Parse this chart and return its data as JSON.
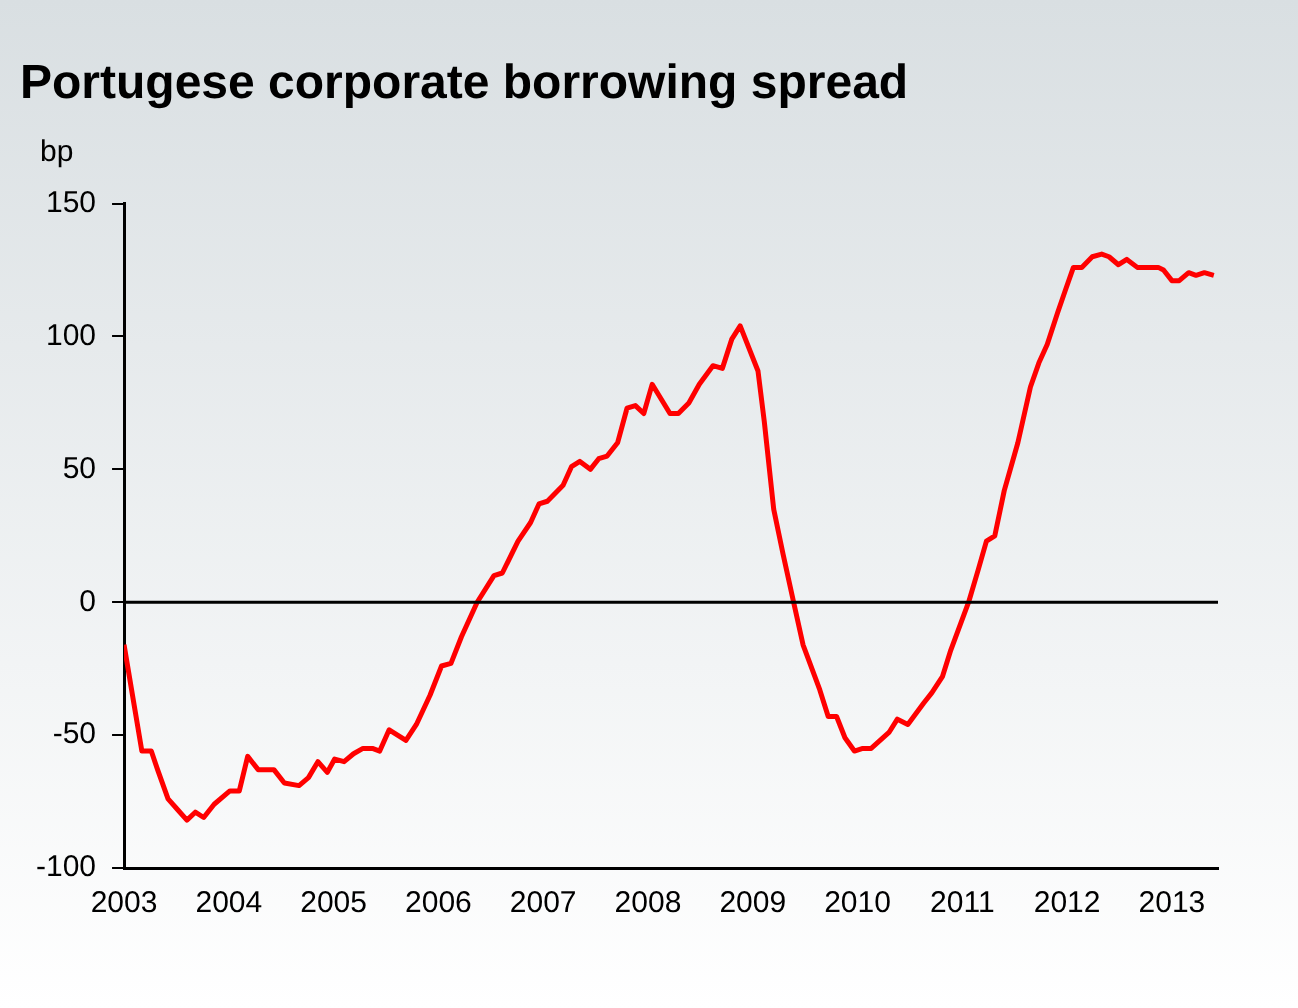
{
  "chart_data": {
    "type": "line",
    "title": "Portugese corporate borrowing spread",
    "ylabel": "bp",
    "series": [
      {
        "color": "#ff0000",
        "x": [
          2003.0,
          2003.17,
          2003.26,
          2003.32,
          2003.42,
          2003.51,
          2003.6,
          2003.68,
          2003.76,
          2003.86,
          2004.01,
          2004.1,
          2004.18,
          2004.28,
          2004.43,
          2004.53,
          2004.67,
          2004.76,
          2004.85,
          2004.94,
          2005.01,
          2005.1,
          2005.19,
          2005.28,
          2005.37,
          2005.44,
          2005.53,
          2005.69,
          2005.79,
          2005.92,
          2006.03,
          2006.12,
          2006.22,
          2006.37,
          2006.53,
          2006.61,
          2006.76,
          2006.88,
          2006.96,
          2007.04,
          2007.19,
          2007.27,
          2007.35,
          2007.45,
          2007.53,
          2007.61,
          2007.71,
          2007.8,
          2007.88,
          2007.96,
          2008.04,
          2008.21,
          2008.29,
          2008.39,
          2008.49,
          2008.62,
          2008.71,
          2008.8,
          2008.88,
          2009.05,
          2009.11,
          2009.2,
          2009.29,
          2009.39,
          2009.48,
          2009.64,
          2009.72,
          2009.8,
          2009.88,
          2009.97,
          2010.05,
          2010.13,
          2010.3,
          2010.38,
          2010.48,
          2010.63,
          2010.71,
          2010.81,
          2010.89,
          2011.06,
          2011.15,
          2011.23,
          2011.31,
          2011.4,
          2011.53,
          2011.65,
          2011.73,
          2011.81,
          2011.91,
          2011.98,
          2012.06,
          2012.14,
          2012.24,
          2012.33,
          2012.4,
          2012.49,
          2012.57,
          2012.67,
          2012.77,
          2012.87,
          2012.92,
          2013.0,
          2013.07,
          2013.16,
          2013.23,
          2013.31,
          2013.4
        ],
        "values": [
          -16,
          -56,
          -56,
          -63,
          -74,
          -78,
          -82,
          -79,
          -81,
          -76,
          -71,
          -71,
          -58,
          -63,
          -63,
          -68,
          -69,
          -66,
          -60,
          -64,
          -59,
          -60,
          -57,
          -55,
          -55,
          -56,
          -48,
          -52,
          -46,
          -35,
          -24,
          -23,
          -13,
          0,
          10,
          11,
          23,
          30,
          37,
          38,
          44,
          51,
          53,
          50,
          54,
          55,
          60,
          73,
          74,
          71,
          82,
          71,
          71,
          75,
          82,
          89,
          88,
          99,
          104,
          87,
          68,
          35,
          18,
          0,
          -16,
          -33,
          -43,
          -43,
          -51,
          -56,
          -55,
          -55,
          -49,
          -44,
          -46,
          -38,
          -34,
          -28,
          -18,
          0,
          12,
          23,
          25,
          42,
          60,
          81,
          90,
          97,
          109,
          117,
          126,
          126,
          130,
          131,
          130,
          127,
          129,
          126,
          126,
          126,
          125,
          121,
          121,
          124,
          123,
          124,
          123
        ]
      }
    ],
    "xlim": [
      2003,
      2013.44
    ],
    "xticks": [
      2003,
      2004,
      2005,
      2006,
      2007,
      2008,
      2009,
      2010,
      2011,
      2012,
      2013
    ],
    "ylim": [
      -100,
      150
    ],
    "yticks": [
      -100,
      -50,
      0,
      50,
      100,
      150
    ],
    "ref_lines": [
      {
        "axis": "y",
        "value": 0,
        "color": "#000000"
      }
    ],
    "grid": false,
    "legend": false,
    "marker": "none",
    "line_style": "solid"
  }
}
